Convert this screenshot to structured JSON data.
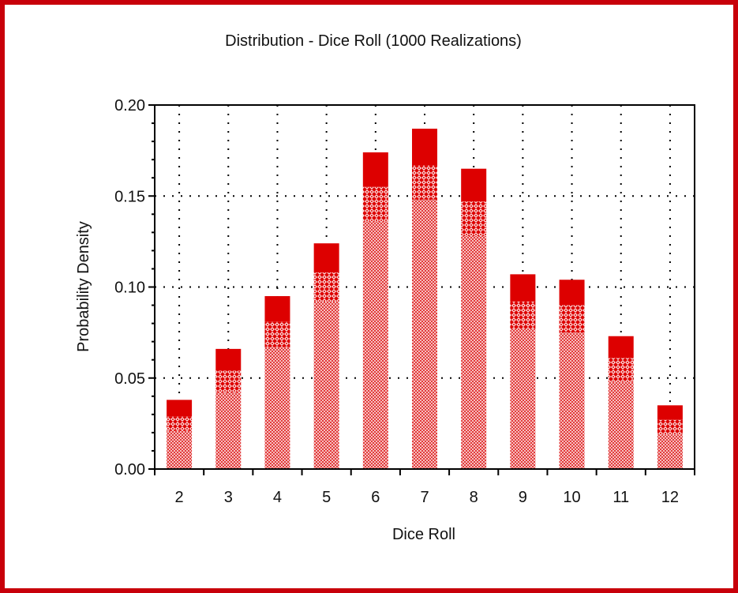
{
  "chart_data": {
    "type": "bar",
    "title": "Distribution - Dice Roll (1000 Realizations)",
    "xlabel": "Dice Roll",
    "ylabel": "Probability Density",
    "ylim": [
      0,
      0.2
    ],
    "yticks": [
      "0.00",
      "0.05",
      "0.10",
      "0.15",
      "0.20"
    ],
    "categories": [
      "2",
      "3",
      "4",
      "5",
      "6",
      "7",
      "8",
      "9",
      "10",
      "11",
      "12"
    ],
    "values": [
      0.038,
      0.066,
      0.095,
      0.124,
      0.174,
      0.187,
      0.165,
      0.107,
      0.104,
      0.073,
      0.035
    ],
    "band_lower": [
      0.021,
      0.042,
      0.067,
      0.092,
      0.136,
      0.148,
      0.128,
      0.077,
      0.075,
      0.048,
      0.019
    ],
    "band_upper": [
      0.029,
      0.054,
      0.081,
      0.108,
      0.155,
      0.167,
      0.147,
      0.092,
      0.09,
      0.061,
      0.027
    ],
    "grid": true,
    "colors": {
      "frame": "#c8000a",
      "bar_solid": "#dd0000",
      "bar_light": "#f4a8a8",
      "bar_pattern_fg": "#dd0000",
      "axis": "#000000"
    }
  }
}
